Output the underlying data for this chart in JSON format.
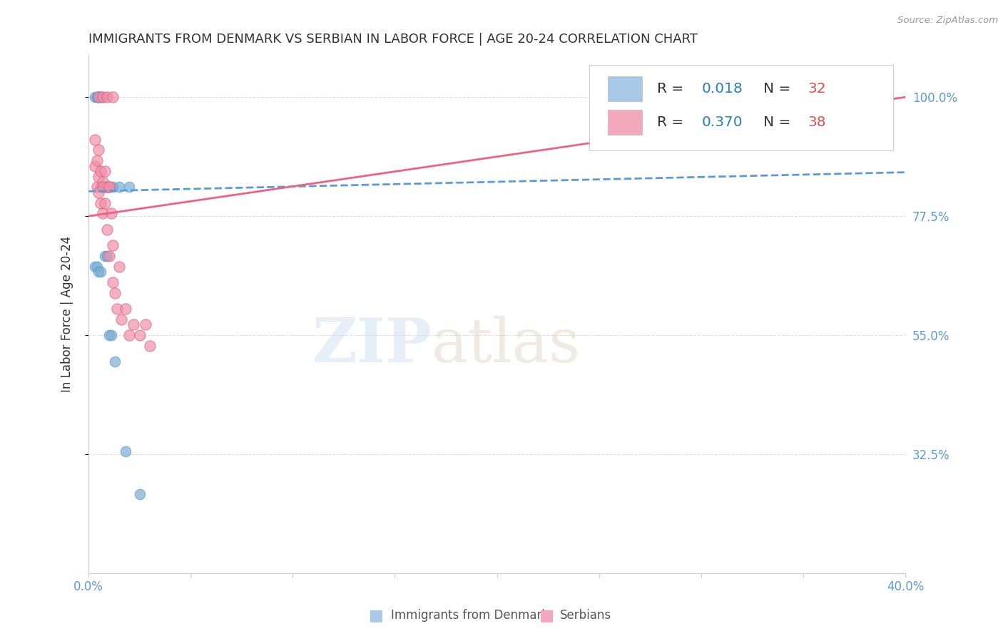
{
  "title": "IMMIGRANTS FROM DENMARK VS SERBIAN IN LABOR FORCE | AGE 20-24 CORRELATION CHART",
  "source": "Source: ZipAtlas.com",
  "ylabel": "In Labor Force | Age 20-24",
  "ytick_labels": [
    "100.0%",
    "77.5%",
    "55.0%",
    "32.5%"
  ],
  "ytick_values": [
    1.0,
    0.775,
    0.55,
    0.325
  ],
  "xlim": [
    0.0,
    0.4
  ],
  "ylim": [
    0.1,
    1.08
  ],
  "watermark_zip": "ZIP",
  "watermark_atlas": "atlas",
  "legend": {
    "denmark_R": "0.018",
    "denmark_N": "32",
    "serbian_R": "0.370",
    "serbian_N": "38",
    "denmark_color": "#a8c8e8",
    "serbian_color": "#f4a8bc"
  },
  "denmark_scatter_x": [
    0.003,
    0.004,
    0.004,
    0.005,
    0.005,
    0.005,
    0.006,
    0.006,
    0.006,
    0.006,
    0.007,
    0.007,
    0.007,
    0.007,
    0.008,
    0.008,
    0.008,
    0.009,
    0.009,
    0.01,
    0.01,
    0.011,
    0.012,
    0.013,
    0.015,
    0.018,
    0.02,
    0.025,
    0.003,
    0.004,
    0.005,
    0.006
  ],
  "denmark_scatter_y": [
    1.0,
    1.0,
    1.0,
    1.0,
    1.0,
    1.0,
    1.0,
    1.0,
    1.0,
    0.83,
    0.83,
    0.83,
    0.83,
    0.83,
    0.83,
    0.83,
    0.7,
    0.83,
    0.7,
    0.83,
    0.55,
    0.55,
    0.83,
    0.5,
    0.83,
    0.33,
    0.83,
    0.25,
    0.68,
    0.68,
    0.67,
    0.67
  ],
  "serbian_scatter_x": [
    0.003,
    0.003,
    0.004,
    0.004,
    0.005,
    0.005,
    0.005,
    0.006,
    0.006,
    0.007,
    0.007,
    0.008,
    0.008,
    0.009,
    0.009,
    0.01,
    0.01,
    0.011,
    0.012,
    0.012,
    0.013,
    0.014,
    0.015,
    0.016,
    0.018,
    0.02,
    0.022,
    0.025,
    0.028,
    0.03,
    0.005,
    0.007,
    0.009,
    0.012,
    0.35,
    0.375,
    0.007,
    0.01
  ],
  "serbian_scatter_y": [
    0.92,
    0.87,
    0.88,
    0.83,
    0.9,
    0.85,
    0.82,
    0.86,
    0.8,
    0.84,
    0.78,
    0.86,
    0.8,
    0.83,
    0.75,
    0.83,
    0.7,
    0.78,
    0.65,
    0.72,
    0.63,
    0.6,
    0.68,
    0.58,
    0.6,
    0.55,
    0.57,
    0.55,
    0.57,
    0.53,
    1.0,
    1.0,
    1.0,
    1.0,
    1.0,
    1.0,
    0.83,
    0.83
  ],
  "denmark_line_x": [
    0.0,
    0.4
  ],
  "denmark_line_y": [
    0.822,
    0.858
  ],
  "danish_line_color": "#5b9bd5",
  "serbian_line_x": [
    0.0,
    0.4
  ],
  "serbian_line_y": [
    0.775,
    1.0
  ],
  "serbian_line_color": "#f06080",
  "dot_color_denmark": "#7bafd4",
  "dot_edgecolor_denmark": "#5b9bd5",
  "dot_color_serbian": "#f090a8",
  "dot_edgecolor_serbian": "#e06080",
  "background_color": "#ffffff",
  "grid_color": "#dddddd",
  "title_color": "#333333",
  "right_label_color": "#5b9bd5",
  "legend_text_color": "#333333",
  "legend_value_color": "#2980b9",
  "legend_n_color": "#e05050"
}
